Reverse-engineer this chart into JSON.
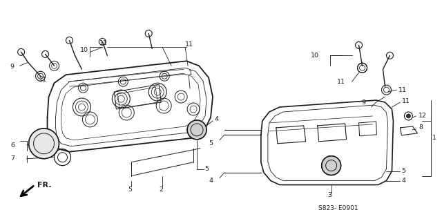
{
  "bg_color": "#ffffff",
  "line_color": "#1a1a1a",
  "fig_width": 6.4,
  "fig_height": 3.17,
  "dpi": 100,
  "diagram_code": "S823- E0901",
  "fr_label": "FR."
}
